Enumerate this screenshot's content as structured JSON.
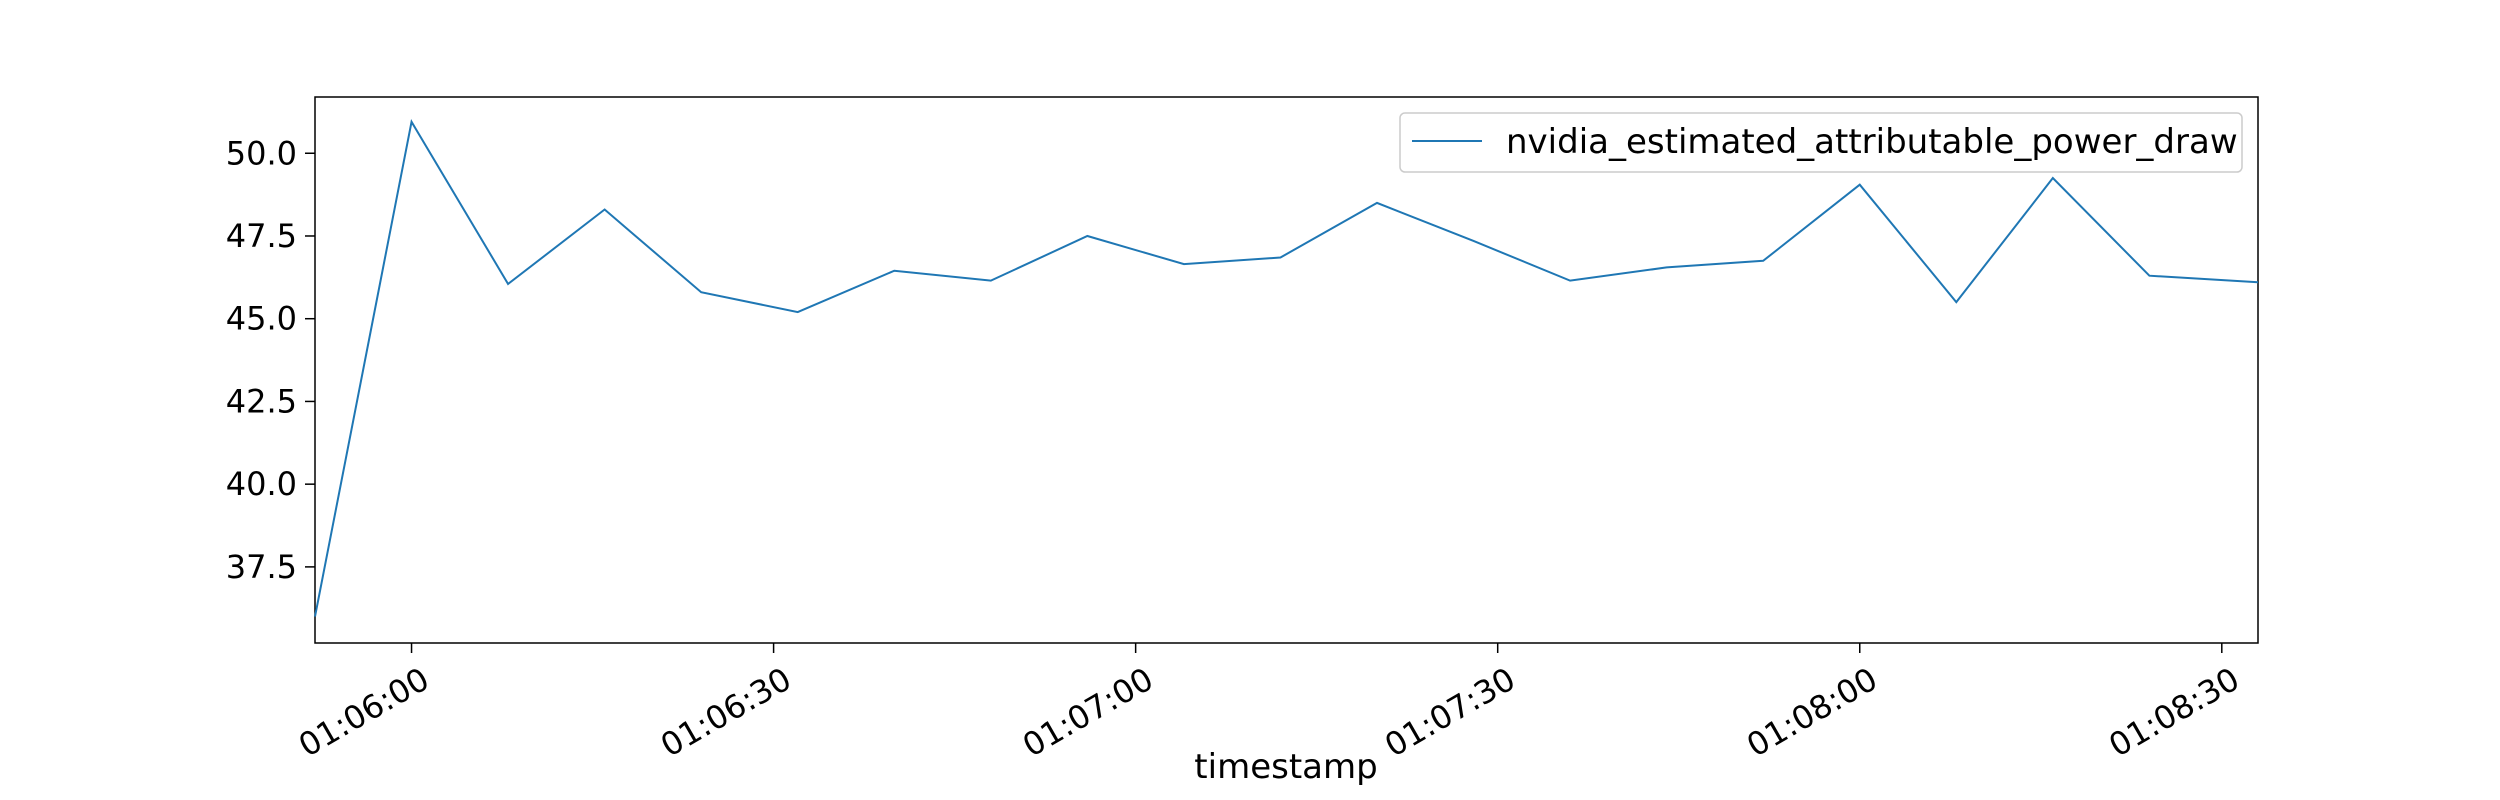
{
  "chart_data": {
    "type": "line",
    "title": "",
    "xlabel": "timestamp",
    "ylabel": "",
    "x_unit": "time",
    "x_ticks": [
      "01:06:00",
      "01:06:30",
      "01:07:00",
      "01:07:30",
      "01:08:00",
      "01:08:30"
    ],
    "y_ticks": [
      "37.5",
      "40.0",
      "42.5",
      "45.0",
      "47.5",
      "50.0"
    ],
    "xlim": [
      "01:05:52",
      "01:08:33"
    ],
    "ylim": [
      35.2,
      51.7
    ],
    "grid": false,
    "legend_position": "top-right",
    "series": [
      {
        "name": "nvidia_estimated_attributable_power_draw",
        "color": "#1f77b4",
        "x": [
          "01:05:52",
          "01:06:00",
          "01:06:08",
          "01:06:16",
          "01:06:24",
          "01:06:32",
          "01:06:40",
          "01:06:48",
          "01:06:56",
          "01:07:04",
          "01:07:12",
          "01:07:20",
          "01:07:28",
          "01:07:36",
          "01:07:44",
          "01:07:52",
          "01:08:00",
          "01:08:08",
          "01:08:16",
          "01:08:24",
          "01:08:33"
        ],
        "values": [
          36.0,
          50.95,
          46.05,
          48.3,
          45.8,
          45.2,
          46.45,
          46.15,
          47.5,
          46.65,
          46.85,
          48.5,
          47.35,
          46.15,
          46.55,
          46.75,
          49.05,
          45.5,
          49.25,
          46.3,
          46.1
        ]
      }
    ]
  }
}
